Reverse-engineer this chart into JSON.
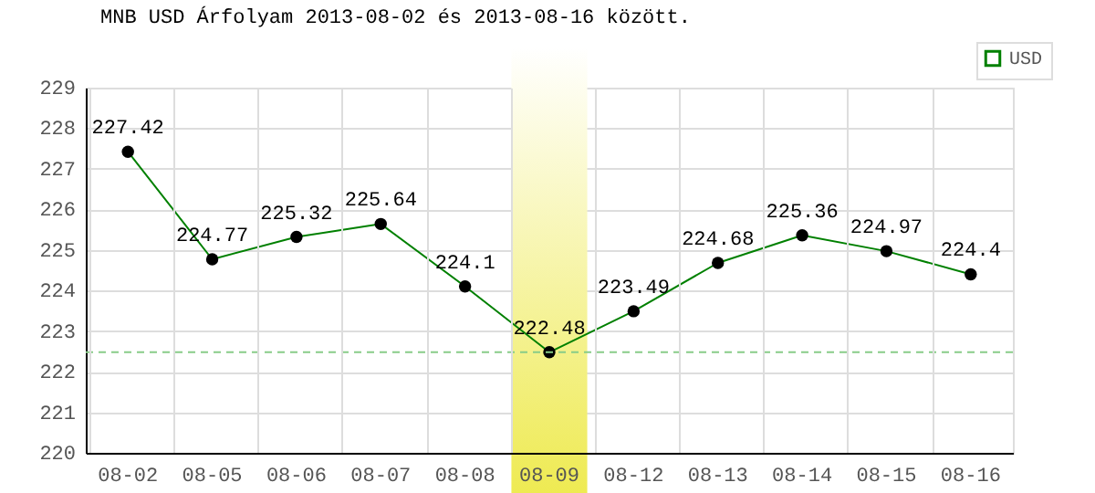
{
  "chart_data": {
    "type": "line",
    "title": "MNB USD Árfolyam 2013-08-02 és 2013-08-16 között.",
    "categories": [
      "08-02",
      "08-05",
      "08-06",
      "08-07",
      "08-08",
      "08-09",
      "08-12",
      "08-13",
      "08-14",
      "08-15",
      "08-16"
    ],
    "series": [
      {
        "name": "USD",
        "color": "#008000",
        "values": [
          227.42,
          224.77,
          225.32,
          225.64,
          224.1,
          222.48,
          223.49,
          224.68,
          225.36,
          224.97,
          224.4
        ]
      }
    ],
    "ylim": [
      220,
      229
    ],
    "yticks": [
      220,
      221,
      222,
      223,
      224,
      225,
      226,
      227,
      228,
      229
    ],
    "ref_lines": [
      {
        "axis": "y",
        "value": 222.48,
        "color": "#88cc88",
        "line_style": "dashed"
      }
    ],
    "bands": [
      {
        "axis": "x",
        "from": "08-09",
        "to": "08-09",
        "color": "#eeea50"
      }
    ],
    "data_labels": true,
    "grid": true,
    "legend": "top right",
    "marker": "circle",
    "line_style": "solid"
  }
}
